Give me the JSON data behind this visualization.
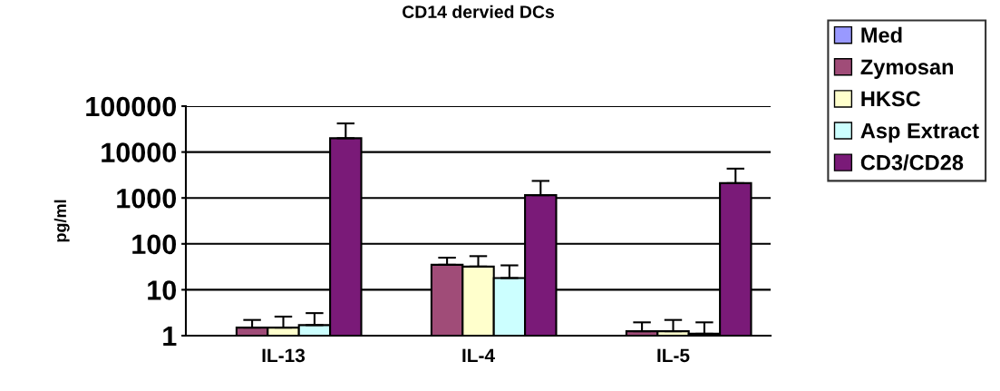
{
  "chart_data": {
    "type": "bar",
    "title": "CD14 dervied DCs",
    "ylabel": "pg/ml",
    "categories": [
      "IL-13",
      "IL-4",
      "IL-5"
    ],
    "series": [
      {
        "name": "Med",
        "color": "#9999ff",
        "values": [
          null,
          null,
          null
        ]
      },
      {
        "name": "Zymosan",
        "color": "#a04c78",
        "values": [
          1.5,
          35,
          1.25
        ],
        "errors": [
          [
            1.5,
            2.2
          ],
          [
            35,
            50
          ],
          [
            1.25,
            1.95
          ]
        ]
      },
      {
        "name": "HKSC",
        "color": "#ffffcc",
        "values": [
          1.5,
          32,
          1.25
        ],
        "errors": [
          [
            1.5,
            2.6
          ],
          [
            32,
            54
          ],
          [
            1.25,
            2.2
          ]
        ]
      },
      {
        "name": "Asp Extract",
        "color": "#ccffff",
        "values": [
          1.7,
          18,
          1.1
        ],
        "errors": [
          [
            1.7,
            3.1
          ],
          [
            18,
            34
          ],
          [
            1.1,
            1.95
          ]
        ]
      },
      {
        "name": "CD3/CD28",
        "color": "#7a1a78",
        "values": [
          20000,
          1150,
          2100
        ],
        "errors": [
          [
            20000,
            42000
          ],
          [
            1150,
            2350
          ],
          [
            2100,
            4350
          ]
        ]
      }
    ],
    "log": true,
    "ylim": [
      1,
      100000
    ],
    "yticks": [
      1,
      10,
      100,
      1000,
      10000,
      100000
    ],
    "grid": "y",
    "legend": "right"
  }
}
